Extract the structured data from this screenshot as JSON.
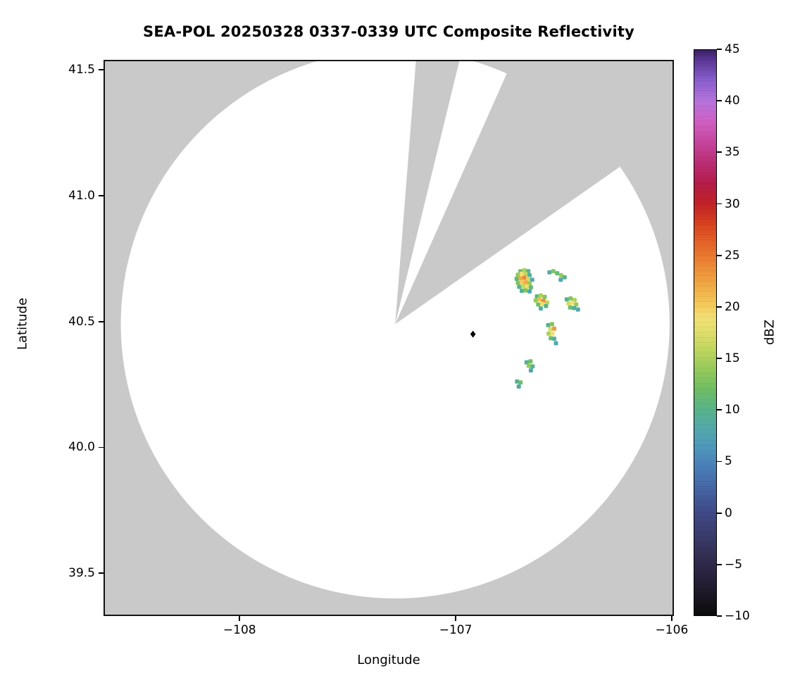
{
  "chart_data": {
    "type": "heatmap",
    "title": "SEA-POL 20250328 0337-0339 UTC Composite Reflectivity",
    "xlabel": "Longitude",
    "ylabel": "Latitude",
    "xlim": [
      -108.63,
      -105.99
    ],
    "ylim": [
      39.33,
      41.54
    ],
    "x_ticks": [
      -108,
      -107,
      -106
    ],
    "y_ticks": [
      39.5,
      40.0,
      40.5,
      41.0,
      41.5
    ],
    "grid": false,
    "colors": {
      "outside_scan": "#c9c9c9",
      "scan_area": "#ffffff",
      "frame": "#000000"
    },
    "radar": {
      "center_lon": -107.28,
      "center_lat": 40.49,
      "radius_deg_lon": 1.27,
      "radius_deg_lat": 1.09,
      "missing_sectors_az_deg": [
        [
          4.5,
          13.7
        ],
        [
          24,
          55
        ]
      ]
    },
    "radar_site_marker": {
      "lon": -106.92,
      "lat": 40.45,
      "shape": "diamond",
      "color": "#000000"
    },
    "echoes": [
      [
        -106.7,
        40.7,
        12
      ],
      [
        -106.682,
        40.704,
        15
      ],
      [
        -106.664,
        40.7,
        10
      ],
      [
        -106.712,
        40.686,
        14
      ],
      [
        -106.694,
        40.69,
        19
      ],
      [
        -106.676,
        40.688,
        16
      ],
      [
        -106.658,
        40.684,
        9
      ],
      [
        -106.718,
        40.67,
        11
      ],
      [
        -106.7,
        40.672,
        22
      ],
      [
        -106.682,
        40.674,
        24
      ],
      [
        -106.664,
        40.67,
        17
      ],
      [
        -106.646,
        40.666,
        8
      ],
      [
        -106.712,
        40.654,
        13
      ],
      [
        -106.694,
        40.656,
        20
      ],
      [
        -106.676,
        40.656,
        22
      ],
      [
        -106.658,
        40.652,
        14
      ],
      [
        -106.706,
        40.638,
        10
      ],
      [
        -106.688,
        40.64,
        16
      ],
      [
        -106.67,
        40.64,
        18
      ],
      [
        -106.652,
        40.636,
        11
      ],
      [
        -106.694,
        40.622,
        9
      ],
      [
        -106.676,
        40.624,
        13
      ],
      [
        -106.658,
        40.62,
        8
      ],
      [
        -106.566,
        40.696,
        9
      ],
      [
        -106.548,
        40.7,
        13
      ],
      [
        -106.53,
        40.692,
        11
      ],
      [
        -106.512,
        40.684,
        14
      ],
      [
        -106.496,
        40.676,
        10
      ],
      [
        -106.514,
        40.666,
        8
      ],
      [
        -106.624,
        40.6,
        11
      ],
      [
        -106.606,
        40.604,
        15
      ],
      [
        -106.588,
        40.598,
        13
      ],
      [
        -106.63,
        40.584,
        14
      ],
      [
        -106.612,
        40.588,
        21
      ],
      [
        -106.594,
        40.582,
        24
      ],
      [
        -106.576,
        40.576,
        16
      ],
      [
        -106.618,
        40.568,
        12
      ],
      [
        -106.6,
        40.57,
        18
      ],
      [
        -106.582,
        40.562,
        10
      ],
      [
        -106.606,
        40.552,
        9
      ],
      [
        -106.486,
        40.588,
        10
      ],
      [
        -106.468,
        40.592,
        13
      ],
      [
        -106.45,
        40.586,
        15
      ],
      [
        -106.478,
        40.572,
        17
      ],
      [
        -106.46,
        40.574,
        19
      ],
      [
        -106.442,
        40.568,
        14
      ],
      [
        -106.47,
        40.556,
        12
      ],
      [
        -106.452,
        40.554,
        9
      ],
      [
        -106.434,
        40.548,
        8
      ],
      [
        -106.572,
        40.486,
        10
      ],
      [
        -106.554,
        40.49,
        13
      ],
      [
        -106.562,
        40.47,
        17
      ],
      [
        -106.544,
        40.472,
        23
      ],
      [
        -106.57,
        40.452,
        15
      ],
      [
        -106.552,
        40.452,
        19
      ],
      [
        -106.56,
        40.434,
        12
      ],
      [
        -106.544,
        40.432,
        9
      ],
      [
        -106.536,
        40.414,
        8
      ],
      [
        -106.672,
        40.338,
        9
      ],
      [
        -106.654,
        40.342,
        12
      ],
      [
        -106.662,
        40.324,
        14
      ],
      [
        -106.644,
        40.322,
        10
      ],
      [
        -106.652,
        40.306,
        8
      ],
      [
        -106.716,
        40.262,
        9
      ],
      [
        -106.7,
        40.258,
        12
      ],
      [
        -106.708,
        40.242,
        8
      ]
    ],
    "colorbar": {
      "label": "dBZ",
      "min": -10,
      "max": 45,
      "ticks": [
        -10,
        -5,
        0,
        5,
        10,
        15,
        20,
        25,
        30,
        35,
        40,
        45
      ],
      "stops": [
        {
          "v": -10,
          "c": "#0b0b0b"
        },
        {
          "v": -8,
          "c": "#1c1824"
        },
        {
          "v": -6,
          "c": "#2a2340"
        },
        {
          "v": -4,
          "c": "#343055"
        },
        {
          "v": -2,
          "c": "#3a3d6e"
        },
        {
          "v": 0,
          "c": "#3f4a87"
        },
        {
          "v": 2,
          "c": "#44619f"
        },
        {
          "v": 4,
          "c": "#4979b4"
        },
        {
          "v": 6,
          "c": "#4e93bd"
        },
        {
          "v": 8,
          "c": "#53a8ad"
        },
        {
          "v": 10,
          "c": "#58b38a"
        },
        {
          "v": 12,
          "c": "#6fbe63"
        },
        {
          "v": 14,
          "c": "#97ca5b"
        },
        {
          "v": 16,
          "c": "#c2d75f"
        },
        {
          "v": 18,
          "c": "#e7e06e"
        },
        {
          "v": 19,
          "c": "#f2df74"
        },
        {
          "v": 20,
          "c": "#f3cd5c"
        },
        {
          "v": 22,
          "c": "#f0ab45"
        },
        {
          "v": 24,
          "c": "#ec8a36"
        },
        {
          "v": 26,
          "c": "#e56729"
        },
        {
          "v": 28,
          "c": "#d8431f"
        },
        {
          "v": 30,
          "c": "#c22326"
        },
        {
          "v": 32,
          "c": "#b51c48"
        },
        {
          "v": 34,
          "c": "#bb2e74"
        },
        {
          "v": 36,
          "c": "#c6459d"
        },
        {
          "v": 38,
          "c": "#cf5fc2"
        },
        {
          "v": 40,
          "c": "#b573dc"
        },
        {
          "v": 42,
          "c": "#8a5fce"
        },
        {
          "v": 44,
          "c": "#5a3795"
        },
        {
          "v": 45,
          "c": "#3a2161"
        }
      ]
    }
  }
}
